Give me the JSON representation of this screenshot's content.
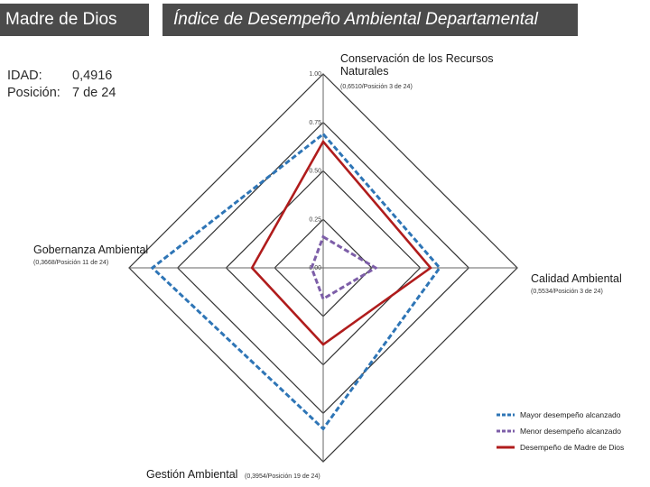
{
  "header": {
    "region": "Madre de Dios",
    "title": "Índice de Desempeño Ambiental Departamental"
  },
  "summary": {
    "idad_label": "IDAD:",
    "idad_value": "0,4916",
    "position_label": "Posición:",
    "position_value": "7 de 24"
  },
  "chart_data": {
    "type": "radar",
    "axes": [
      {
        "name": "Conservación de los Recursos Naturales",
        "sub": "(0,6510/Posición 3 de 24)"
      },
      {
        "name": "Calidad Ambiental",
        "sub": "(0,5534/Posición 3 de 24)"
      },
      {
        "name": "Gestión Ambiental",
        "sub": "(0,3954/Posición 19 de 24)"
      },
      {
        "name": "Gobernanza Ambiental",
        "sub": "(0,3668/Posición 11 de 24)"
      }
    ],
    "ticks": [
      "0.00",
      "0.25",
      "0.50",
      "0.75",
      "1.00"
    ],
    "range": [
      0,
      1
    ],
    "series": [
      {
        "name": "Mayor desempeño alcanzado",
        "values": [
          0.69,
          0.6,
          0.83,
          0.88
        ],
        "color": "#2e75b6",
        "dash": true
      },
      {
        "name": "Menor desempeño alcanzado",
        "values": [
          0.16,
          0.27,
          0.16,
          0.06
        ],
        "color": "#7d5ea8",
        "dash": true
      },
      {
        "name": "Desempeño de Madre de Dios",
        "values": [
          0.651,
          0.5534,
          0.3954,
          0.3668
        ],
        "color": "#b01c1c",
        "dash": false
      }
    ],
    "legend_position": "bottom-right"
  }
}
